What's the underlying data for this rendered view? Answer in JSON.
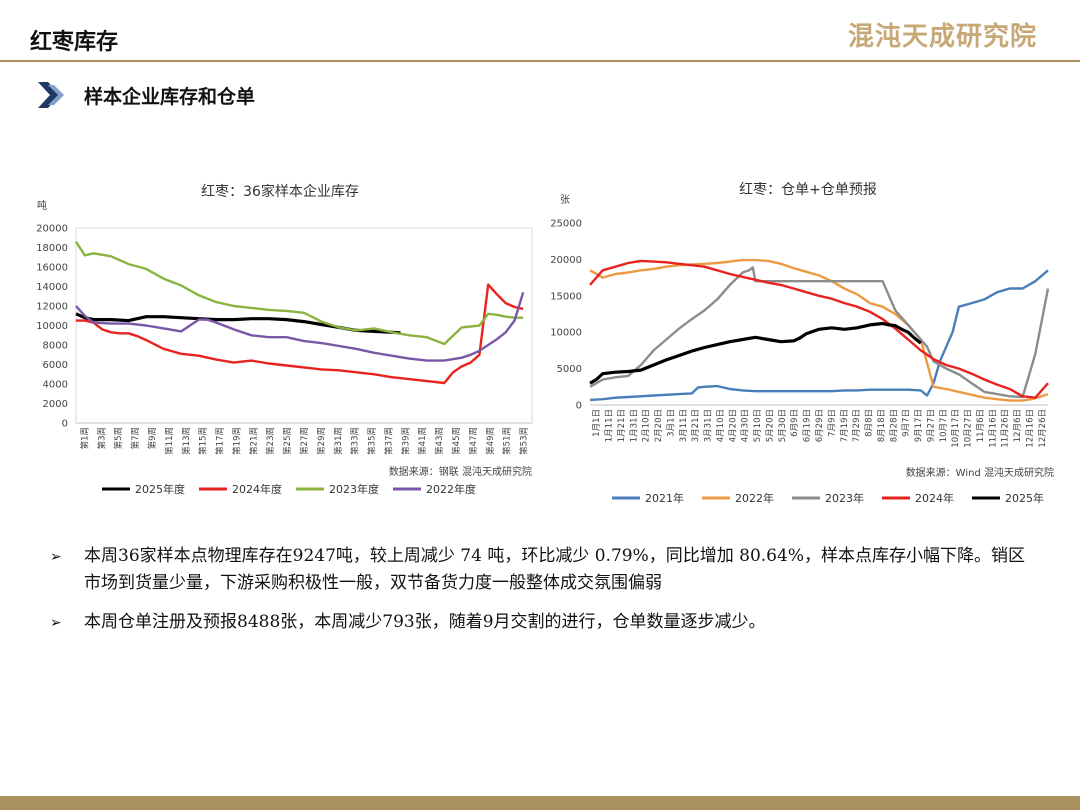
{
  "header": {
    "title": "红枣库存",
    "logo_text": "混沌天成研究院",
    "accent_color": "#a8915f"
  },
  "section": {
    "title": "样本企业库存和仓单",
    "arrow_icon": "double-chevron-right-icon",
    "arrow_color": "#1f3864"
  },
  "chart_data": [
    {
      "type": "line",
      "title": "红枣：36家样本企业库存",
      "ylabel": "吨",
      "ylim": [
        0,
        20000
      ],
      "yticks": [
        0,
        2000,
        4000,
        6000,
        8000,
        10000,
        12000,
        14000,
        16000,
        18000,
        20000
      ],
      "xlabel": "",
      "xticks": [
        "第1周",
        "第3周",
        "第5周",
        "第7周",
        "第9周",
        "第11周",
        "第13周",
        "第15周",
        "第17周",
        "第19周",
        "第21周",
        "第23周",
        "第25周",
        "第27周",
        "第29周",
        "第31周",
        "第33周",
        "第35周",
        "第37周",
        "第39周",
        "第41周",
        "第43周",
        "第45周",
        "第47周",
        "第49周",
        "第51周",
        "第53周"
      ],
      "x_range": [
        1,
        53
      ],
      "source": "数据来源：钢联  混沌天成研究院",
      "legend_position": "bottom",
      "grid": false,
      "series": [
        {
          "name": "2025年度",
          "color": "#000000",
          "x": [
            1,
            2,
            3,
            5,
            7,
            9,
            11,
            13,
            15,
            17,
            19,
            21,
            23,
            25,
            27,
            29,
            31,
            33,
            35,
            37,
            38
          ],
          "values": [
            11200,
            10800,
            10600,
            10600,
            10500,
            10900,
            10900,
            10800,
            10700,
            10600,
            10600,
            10700,
            10700,
            10600,
            10400,
            10100,
            9800,
            9500,
            9400,
            9300,
            9250
          ]
        },
        {
          "name": "2024年度",
          "color": "#e8231f",
          "x": [
            1,
            2,
            3,
            4,
            5,
            6,
            7,
            8,
            9,
            11,
            13,
            15,
            17,
            19,
            21,
            23,
            25,
            27,
            29,
            31,
            33,
            35,
            37,
            39,
            41,
            43,
            44,
            45,
            46,
            47,
            48,
            49,
            50,
            51,
            52
          ],
          "values": [
            10500,
            10500,
            10300,
            9600,
            9300,
            9200,
            9200,
            8900,
            8500,
            7600,
            7100,
            6900,
            6500,
            6200,
            6400,
            6100,
            5900,
            5700,
            5500,
            5400,
            5200,
            5000,
            4700,
            4500,
            4300,
            4100,
            5200,
            5800,
            6200,
            7000,
            14200,
            13200,
            12300,
            11900,
            11700
          ]
        },
        {
          "name": "2023年度",
          "color": "#8ab43f",
          "x": [
            1,
            2,
            3,
            5,
            7,
            9,
            11,
            13,
            15,
            17,
            19,
            21,
            23,
            25,
            27,
            29,
            31,
            33,
            35,
            37,
            39,
            41,
            43,
            45,
            46,
            47,
            48,
            49,
            50,
            51,
            52
          ],
          "values": [
            18600,
            17200,
            17400,
            17100,
            16300,
            15800,
            14800,
            14100,
            13100,
            12400,
            12000,
            11800,
            11600,
            11500,
            11300,
            10400,
            9800,
            9500,
            9700,
            9300,
            9000,
            8800,
            8100,
            9800,
            9900,
            10000,
            11200,
            11100,
            10900,
            10800,
            10800
          ]
        },
        {
          "name": "2022年度",
          "color": "#7a57a6",
          "x": [
            1,
            2,
            3,
            5,
            7,
            9,
            11,
            13,
            15,
            16,
            17,
            19,
            21,
            23,
            25,
            27,
            29,
            31,
            33,
            35,
            37,
            39,
            41,
            43,
            45,
            46,
            47,
            48,
            49,
            50,
            51,
            52
          ],
          "values": [
            12000,
            11000,
            10300,
            10200,
            10200,
            10000,
            9700,
            9400,
            10600,
            10600,
            10300,
            9600,
            9000,
            8800,
            8800,
            8400,
            8200,
            7900,
            7600,
            7200,
            6900,
            6600,
            6400,
            6400,
            6700,
            7000,
            7400,
            8000,
            8600,
            9300,
            10500,
            13400
          ]
        }
      ]
    },
    {
      "type": "line",
      "title": "红枣：仓单+仓单预报",
      "ylabel": "张",
      "ylim": [
        0,
        25000
      ],
      "yticks": [
        0,
        5000,
        10000,
        15000,
        20000,
        25000
      ],
      "xlabel": "",
      "xticks": [
        "1月1日",
        "1月11日",
        "1月21日",
        "1月31日",
        "2月10日",
        "2月20日",
        "3月1日",
        "3月11日",
        "3月21日",
        "3月31日",
        "4月10日",
        "4月20日",
        "4月30日",
        "5月10日",
        "5月20日",
        "5月30日",
        "6月9日",
        "6月19日",
        "6月29日",
        "7月9日",
        "7月19日",
        "7月29日",
        "8月8日",
        "8月18日",
        "8月28日",
        "9月7日",
        "9月17日",
        "9月27日",
        "10月7日",
        "10月17日",
        "10月27日",
        "11月6日",
        "11月16日",
        "11月26日",
        "12月6日",
        "12月16日",
        "12月26日"
      ],
      "x_range": [
        0,
        360
      ],
      "x_unit": "day of year",
      "source": "数据来源：Wind  混沌天成研究院",
      "legend_position": "bottom",
      "grid": false,
      "series": [
        {
          "name": "2021年",
          "color": "#4a7ebb",
          "x": [
            0,
            10,
            20,
            30,
            40,
            50,
            60,
            70,
            80,
            85,
            90,
            100,
            110,
            120,
            130,
            140,
            150,
            160,
            170,
            180,
            190,
            200,
            210,
            220,
            230,
            240,
            250,
            260,
            265,
            270,
            275,
            280,
            285,
            290,
            300,
            310,
            320,
            330,
            340,
            350,
            360
          ],
          "values": [
            700,
            800,
            1000,
            1100,
            1200,
            1300,
            1400,
            1500,
            1600,
            2400,
            2500,
            2600,
            2200,
            2000,
            1900,
            1900,
            1900,
            1900,
            1900,
            1900,
            1900,
            2000,
            2000,
            2100,
            2100,
            2100,
            2100,
            2000,
            1300,
            3000,
            6000,
            8000,
            10000,
            13500,
            14000,
            14500,
            15500,
            16000,
            16000,
            17000,
            18500
          ]
        },
        {
          "name": "2022年",
          "color": "#ec9a43",
          "x": [
            0,
            10,
            20,
            30,
            40,
            50,
            60,
            70,
            80,
            90,
            100,
            110,
            120,
            130,
            140,
            150,
            160,
            170,
            180,
            190,
            200,
            210,
            220,
            230,
            240,
            250,
            260,
            270,
            280,
            290,
            300,
            310,
            320,
            330,
            340,
            350,
            360
          ],
          "values": [
            18500,
            17500,
            18000,
            18200,
            18500,
            18700,
            19000,
            19200,
            19300,
            19400,
            19500,
            19700,
            19900,
            19900,
            19800,
            19400,
            18800,
            18300,
            17800,
            17000,
            16000,
            15200,
            14000,
            13500,
            12500,
            11000,
            9000,
            2500,
            2200,
            1800,
            1400,
            1000,
            800,
            600,
            600,
            900,
            1500
          ]
        },
        {
          "name": "2023年",
          "color": "#8c8c8c",
          "x": [
            0,
            10,
            20,
            30,
            40,
            50,
            60,
            70,
            80,
            90,
            100,
            110,
            120,
            125,
            128,
            130,
            140,
            150,
            160,
            170,
            180,
            190,
            200,
            210,
            220,
            230,
            240,
            250,
            260,
            265,
            270,
            280,
            290,
            300,
            310,
            320,
            330,
            340,
            350,
            360
          ],
          "values": [
            2500,
            3500,
            3800,
            4000,
            5500,
            7500,
            9000,
            10500,
            11800,
            13000,
            14500,
            16500,
            18200,
            18500,
            18900,
            17000,
            17000,
            17000,
            17000,
            17000,
            17000,
            17000,
            17000,
            17000,
            17000,
            17000,
            13000,
            11000,
            9000,
            8000,
            6000,
            5000,
            4200,
            3000,
            1800,
            1500,
            1200,
            1100,
            7000,
            16000
          ]
        },
        {
          "name": "2024年",
          "color": "#e8231f",
          "x": [
            0,
            10,
            20,
            30,
            40,
            50,
            60,
            70,
            80,
            90,
            100,
            110,
            120,
            130,
            140,
            150,
            160,
            170,
            180,
            190,
            200,
            210,
            220,
            230,
            240,
            250,
            260,
            270,
            280,
            290,
            300,
            310,
            320,
            330,
            340,
            350,
            360
          ],
          "values": [
            16500,
            18500,
            19000,
            19500,
            19800,
            19700,
            19600,
            19400,
            19200,
            19000,
            18500,
            18000,
            17600,
            17200,
            16800,
            16500,
            16000,
            15500,
            15000,
            14600,
            14000,
            13500,
            12800,
            11800,
            10500,
            9000,
            7500,
            6300,
            5500,
            5000,
            4300,
            3500,
            2800,
            2200,
            1200,
            1000,
            3000
          ]
        },
        {
          "name": "2025年",
          "color": "#000000",
          "x": [
            0,
            5,
            10,
            20,
            30,
            40,
            50,
            60,
            70,
            80,
            90,
            100,
            110,
            120,
            130,
            140,
            150,
            160,
            165,
            170,
            180,
            190,
            200,
            210,
            220,
            230,
            235,
            240,
            245,
            250,
            255,
            260
          ],
          "values": [
            3000,
            3500,
            4300,
            4500,
            4600,
            4800,
            5500,
            6200,
            6800,
            7400,
            7900,
            8300,
            8700,
            9000,
            9300,
            9000,
            8700,
            8800,
            9200,
            9800,
            10400,
            10600,
            10400,
            10600,
            11000,
            11200,
            11000,
            10900,
            10400,
            10000,
            9200,
            8500
          ]
        }
      ]
    }
  ],
  "bullets": [
    "本周36家样本点物理库存在9247吨，较上周减少 74 吨，环比减少 0.79%，同比增加 80.64%，样本点库存小幅下降。销区市场到货量少量，下游采购积极性一般，双节备货力度一般整体成交氛围偏弱",
    "本周仓单注册及预报8488张，本周减少793张，随着9月交割的进行，仓单数量逐步减少。"
  ],
  "bullet_icon": "arrowhead-right-icon"
}
